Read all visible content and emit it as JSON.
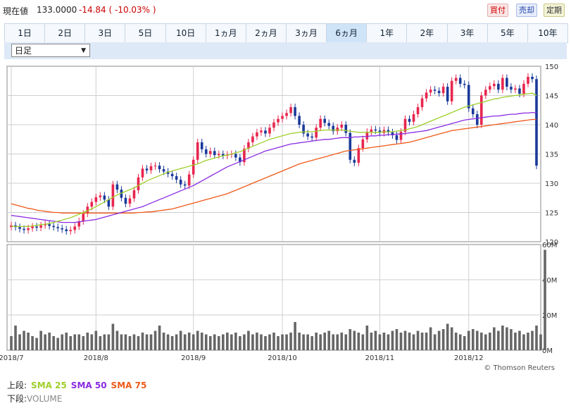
{
  "header": {
    "price_label": "現在値",
    "price_value": "133.0000",
    "price_change": "-14.84 ( -10.03% )",
    "buy_label": "買付",
    "sell_label": "売却",
    "regular_label": "定期"
  },
  "periods": [
    "1日",
    "2日",
    "3日",
    "5日",
    "10日",
    "1ヵ月",
    "2ヵ月",
    "3ヵ月",
    "6ヵ月",
    "1年",
    "2年",
    "3年",
    "5年",
    "10年"
  ],
  "active_period": "6ヵ月",
  "interval_select": "日足",
  "credit": "© Thomson Reuters",
  "legend": {
    "upper_label": "上段:",
    "sma25": "SMA 25",
    "sma50": "SMA 50",
    "sma75": "SMA 75",
    "lower_label": "下段:",
    "volume": "VOLUME"
  },
  "colors": {
    "up": "#e8264e",
    "down": "#1a3a9a",
    "sma25": "#9fcf2a",
    "sma50": "#8a2be2",
    "sma75": "#ee5a1a",
    "volume": "#666666"
  },
  "chart_data": [
    {
      "type": "candlestick",
      "ylim": [
        120,
        150
      ],
      "y_ticks": [
        "150",
        "145",
        "140",
        "135",
        "130",
        "125",
        "120"
      ],
      "x_tick_labels": [
        "2018/7",
        "2018/8",
        "2018/9",
        "2018/10",
        "2018/11",
        "2018/12"
      ],
      "close": [
        122.8,
        122.5,
        122.2,
        122.0,
        122.3,
        122.6,
        122.4,
        122.8,
        123.0,
        122.7,
        122.5,
        122.3,
        122.1,
        121.8,
        122.0,
        122.6,
        123.5,
        124.8,
        126.0,
        126.8,
        127.6,
        127.9,
        127.2,
        126.0,
        129.8,
        128.9,
        127.5,
        126.5,
        127.4,
        128.8,
        131.0,
        132.5,
        132.2,
        132.9,
        133.0,
        132.4,
        132.0,
        131.6,
        131.2,
        130.6,
        129.8,
        129.6,
        131.5,
        134.0,
        137.0,
        135.8,
        135.0,
        135.5,
        134.8,
        135.0,
        134.7,
        134.9,
        135.0,
        134.4,
        133.6,
        135.9,
        137.0,
        138.0,
        138.7,
        139.0,
        138.5,
        139.5,
        140.4,
        141.0,
        141.5,
        142.0,
        143.0,
        141.5,
        140.0,
        138.5,
        138.0,
        137.8,
        139.5,
        141.0,
        140.3,
        139.8,
        138.9,
        139.5,
        140.0,
        138.6,
        134.0,
        133.5,
        136.0,
        137.5,
        138.8,
        139.2,
        139.0,
        138.6,
        139.1,
        138.7,
        138.2,
        137.4,
        138.8,
        141.0,
        140.5,
        141.8,
        143.0,
        144.5,
        145.5,
        146.0,
        145.8,
        145.4,
        146.5,
        144.0,
        147.5,
        148.0,
        147.0,
        146.8,
        142.8,
        141.8,
        140.0,
        145.0,
        146.0,
        146.6,
        147.0,
        146.0,
        148.0,
        146.5,
        146.0,
        146.2,
        145.3,
        147.0,
        148.2,
        147.8,
        133.0
      ],
      "sma25": [
        122.7,
        122.6,
        122.6,
        122.6,
        122.6,
        122.7,
        122.8,
        122.9,
        123.0,
        123.1,
        123.3,
        123.5,
        123.7,
        123.9,
        124.1,
        124.4,
        124.7,
        125.0,
        125.3,
        125.6,
        126.0,
        126.4,
        126.8,
        127.2,
        127.6,
        128.0,
        128.3,
        128.6,
        128.9,
        129.2,
        129.6,
        130.0,
        130.4,
        130.7,
        131.0,
        131.3,
        131.6,
        131.9,
        132.1,
        132.3,
        132.5,
        132.7,
        132.9,
        133.1,
        133.3,
        133.6,
        133.9,
        134.1,
        134.3,
        134.5,
        134.7,
        134.8,
        135.0,
        135.2,
        135.4,
        135.7,
        136.0,
        136.3,
        136.6,
        136.9,
        137.2,
        137.5,
        137.7,
        137.9,
        138.1,
        138.3,
        138.5,
        138.6,
        138.7,
        138.8,
        138.8,
        138.8,
        138.9,
        139.0,
        139.1,
        139.1,
        139.1,
        139.1,
        139.1,
        139.0,
        138.9,
        138.8,
        138.7,
        138.7,
        138.7,
        138.7,
        138.7,
        138.7,
        138.8,
        138.8,
        138.8,
        138.9,
        139.0,
        139.1,
        139.3,
        139.5,
        139.7,
        140.0,
        140.3,
        140.6,
        140.9,
        141.2,
        141.5,
        141.8,
        142.1,
        142.4,
        142.7,
        143.0,
        143.2,
        143.4,
        143.6,
        143.8,
        144.0,
        144.2,
        144.4,
        144.5,
        144.7,
        144.8,
        144.9,
        145.0,
        145.1,
        145.2,
        145.3,
        145.4,
        145.0
      ],
      "sma50": [
        124.5,
        124.4,
        124.3,
        124.2,
        124.1,
        124.0,
        123.9,
        123.8,
        123.7,
        123.6,
        123.5,
        123.4,
        123.3,
        123.3,
        123.3,
        123.3,
        123.4,
        123.5,
        123.6,
        123.7,
        123.8,
        124.0,
        124.2,
        124.4,
        124.6,
        124.8,
        125.0,
        125.2,
        125.4,
        125.6,
        125.8,
        126.0,
        126.3,
        126.6,
        126.9,
        127.2,
        127.5,
        127.8,
        128.1,
        128.4,
        128.7,
        129.0,
        129.3,
        129.6,
        130.0,
        130.4,
        130.8,
        131.2,
        131.6,
        132.0,
        132.4,
        132.8,
        133.1,
        133.4,
        133.7,
        134.0,
        134.3,
        134.6,
        134.9,
        135.2,
        135.5,
        135.7,
        135.9,
        136.1,
        136.3,
        136.5,
        136.7,
        136.8,
        136.9,
        137.0,
        137.1,
        137.2,
        137.3,
        137.4,
        137.5,
        137.5,
        137.6,
        137.7,
        137.8,
        137.8,
        137.8,
        137.9,
        137.9,
        138.0,
        138.0,
        138.1,
        138.1,
        138.2,
        138.2,
        138.3,
        138.3,
        138.4,
        138.4,
        138.5,
        138.6,
        138.7,
        138.8,
        138.9,
        139.0,
        139.2,
        139.4,
        139.6,
        139.8,
        140.0,
        140.2,
        140.4,
        140.6,
        140.8,
        140.9,
        141.0,
        141.1,
        141.2,
        141.3,
        141.4,
        141.5,
        141.5,
        141.6,
        141.7,
        141.8,
        141.8,
        141.9,
        142.0,
        142.0,
        142.1,
        142.0
      ],
      "sma75": [
        126.5,
        126.3,
        126.1,
        125.9,
        125.7,
        125.6,
        125.4,
        125.3,
        125.2,
        125.1,
        125.0,
        125.0,
        124.9,
        124.9,
        124.9,
        124.9,
        124.9,
        124.9,
        124.9,
        124.9,
        124.9,
        124.9,
        124.9,
        124.9,
        124.9,
        124.9,
        124.9,
        124.9,
        124.9,
        124.9,
        125.0,
        125.0,
        125.1,
        125.1,
        125.2,
        125.3,
        125.4,
        125.5,
        125.6,
        125.8,
        126.0,
        126.2,
        126.4,
        126.6,
        126.8,
        127.0,
        127.2,
        127.4,
        127.6,
        127.8,
        128.0,
        128.2,
        128.5,
        128.8,
        129.1,
        129.4,
        129.7,
        130.0,
        130.3,
        130.6,
        130.9,
        131.2,
        131.5,
        131.8,
        132.1,
        132.4,
        132.7,
        133.0,
        133.3,
        133.5,
        133.7,
        133.9,
        134.1,
        134.3,
        134.5,
        134.7,
        134.9,
        135.1,
        135.3,
        135.5,
        135.6,
        135.7,
        135.8,
        135.9,
        136.0,
        136.1,
        136.2,
        136.3,
        136.4,
        136.5,
        136.6,
        136.7,
        136.8,
        136.9,
        137.0,
        137.2,
        137.4,
        137.6,
        137.8,
        138.0,
        138.2,
        138.4,
        138.6,
        138.8,
        139.0,
        139.1,
        139.2,
        139.3,
        139.4,
        139.5,
        139.6,
        139.7,
        139.8,
        139.9,
        140.0,
        140.1,
        140.2,
        140.3,
        140.4,
        140.5,
        140.6,
        140.7,
        140.8,
        140.9,
        140.9
      ]
    },
    {
      "type": "bar",
      "ylim": [
        0,
        60
      ],
      "y_ticks": [
        "60M",
        "40M",
        "20M",
        "0M"
      ],
      "values": [
        8,
        14,
        9,
        11,
        10,
        8,
        7,
        11,
        9,
        10,
        8,
        7,
        9,
        10,
        8,
        9,
        9,
        8,
        10,
        9,
        11,
        8,
        9,
        9,
        15,
        11,
        9,
        9,
        8,
        9,
        8,
        10,
        9,
        9,
        11,
        14,
        10,
        9,
        8,
        9,
        11,
        9,
        10,
        9,
        11,
        10,
        9,
        8,
        9,
        8,
        9,
        10,
        9,
        10,
        8,
        9,
        11,
        9,
        10,
        9,
        8,
        9,
        10,
        8,
        9,
        9,
        10,
        16,
        10,
        9,
        9,
        8,
        10,
        9,
        10,
        11,
        9,
        9,
        10,
        9,
        12,
        11,
        10,
        9,
        14,
        10,
        11,
        9,
        10,
        9,
        11,
        12,
        10,
        11,
        10,
        9,
        11,
        10,
        10,
        13,
        9,
        11,
        12,
        15,
        13,
        10,
        9,
        8,
        11,
        12,
        11,
        10,
        9,
        10,
        13,
        11,
        14,
        13,
        12,
        10,
        11,
        9,
        10,
        11,
        14,
        9,
        57
      ]
    }
  ]
}
